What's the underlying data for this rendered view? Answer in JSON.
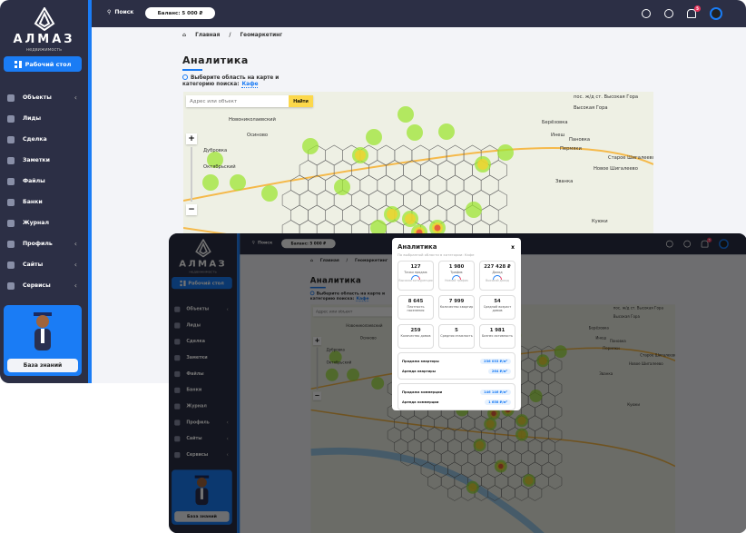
{
  "brand": {
    "name": "АЛМАЗ",
    "tagline": "недвижимость"
  },
  "sidebar": {
    "desktop_button": "Рабочий стол",
    "items": [
      {
        "label": "Объекты",
        "icon": "building-icon",
        "expandable": true
      },
      {
        "label": "Лиды",
        "icon": "target-icon",
        "expandable": false
      },
      {
        "label": "Сделка",
        "icon": "handshake-icon",
        "expandable": false
      },
      {
        "label": "Заметки",
        "icon": "note-icon",
        "expandable": false
      },
      {
        "label": "Файлы",
        "icon": "folder-icon",
        "expandable": false
      },
      {
        "label": "Банки",
        "icon": "bank-icon",
        "expandable": false
      },
      {
        "label": "Журнал",
        "icon": "journal-icon",
        "expandable": false
      },
      {
        "label": "Профиль",
        "icon": "user-icon",
        "expandable": true
      },
      {
        "label": "Сайты",
        "icon": "globe-icon",
        "expandable": true
      },
      {
        "label": "Сервисы",
        "icon": "grid-icon",
        "expandable": true
      }
    ],
    "knowledge_base": "База знаний"
  },
  "header": {
    "search": "Поиск",
    "balance": "Баланс: 5 000 ₽",
    "notifications_count": "5"
  },
  "breadcrumb": {
    "home": "Главная",
    "separator": "/",
    "current": "Геомаркетинг"
  },
  "page": {
    "title": "Аналитика",
    "hint": "Выберите область на карте и категорию поиска:",
    "category": "Кафе"
  },
  "map": {
    "search_placeholder": "Адрес или объект",
    "search_button": "Найти",
    "zoom_in": "+",
    "zoom_out": "−",
    "labels": [
      "пос. ж/д ст. Высокая Гора",
      "Высокая Гора",
      "Берёзовка",
      "Новониколаевский",
      "Осиново",
      "Дубровка",
      "Октябрьский",
      "Инеш",
      "Пановка",
      "Пермяки",
      "Старое Шигалеево",
      "Новое Шигалеево",
      "Званка",
      "Куюки"
    ]
  },
  "analytics_popup": {
    "title": "Аналитика",
    "subtitle": "По выбранной области в категории: Кафе",
    "close": "x",
    "metrics": [
      {
        "value": "127",
        "label": "Точки продаж",
        "note": "Высокая конкуренция"
      },
      {
        "value": "1 980",
        "label": "Трафик",
        "note": "Низкий трафик"
      },
      {
        "value": "227 428 ₽",
        "label": "Доход",
        "note": "Высокий доход"
      },
      {
        "value": "8 645",
        "label": "Плотность населения"
      },
      {
        "value": "7 999",
        "label": "Количество квартир"
      },
      {
        "value": "54",
        "label": "Средний возраст домов"
      },
      {
        "value": "259",
        "label": "Количество домов"
      },
      {
        "value": "5",
        "label": "Средняя этажность"
      },
      {
        "value": "1 981",
        "label": "Бизнес активность"
      }
    ],
    "residential": [
      {
        "label": "Продажа квартиры",
        "price": "236 033 ₽/м²"
      },
      {
        "label": "Аренда квартиры",
        "price": "264 ₽/м²"
      }
    ],
    "commercial": [
      {
        "label": "Продажа коммерции",
        "price": "146 146 ₽/м²"
      },
      {
        "label": "Аренда коммерции",
        "price": "1 658 ₽/м²"
      }
    ]
  },
  "colors": {
    "sidebar": "#2c2f45",
    "accent": "#1a7cf5",
    "find_button": "#fcd84a",
    "badge": "#e8365d"
  }
}
